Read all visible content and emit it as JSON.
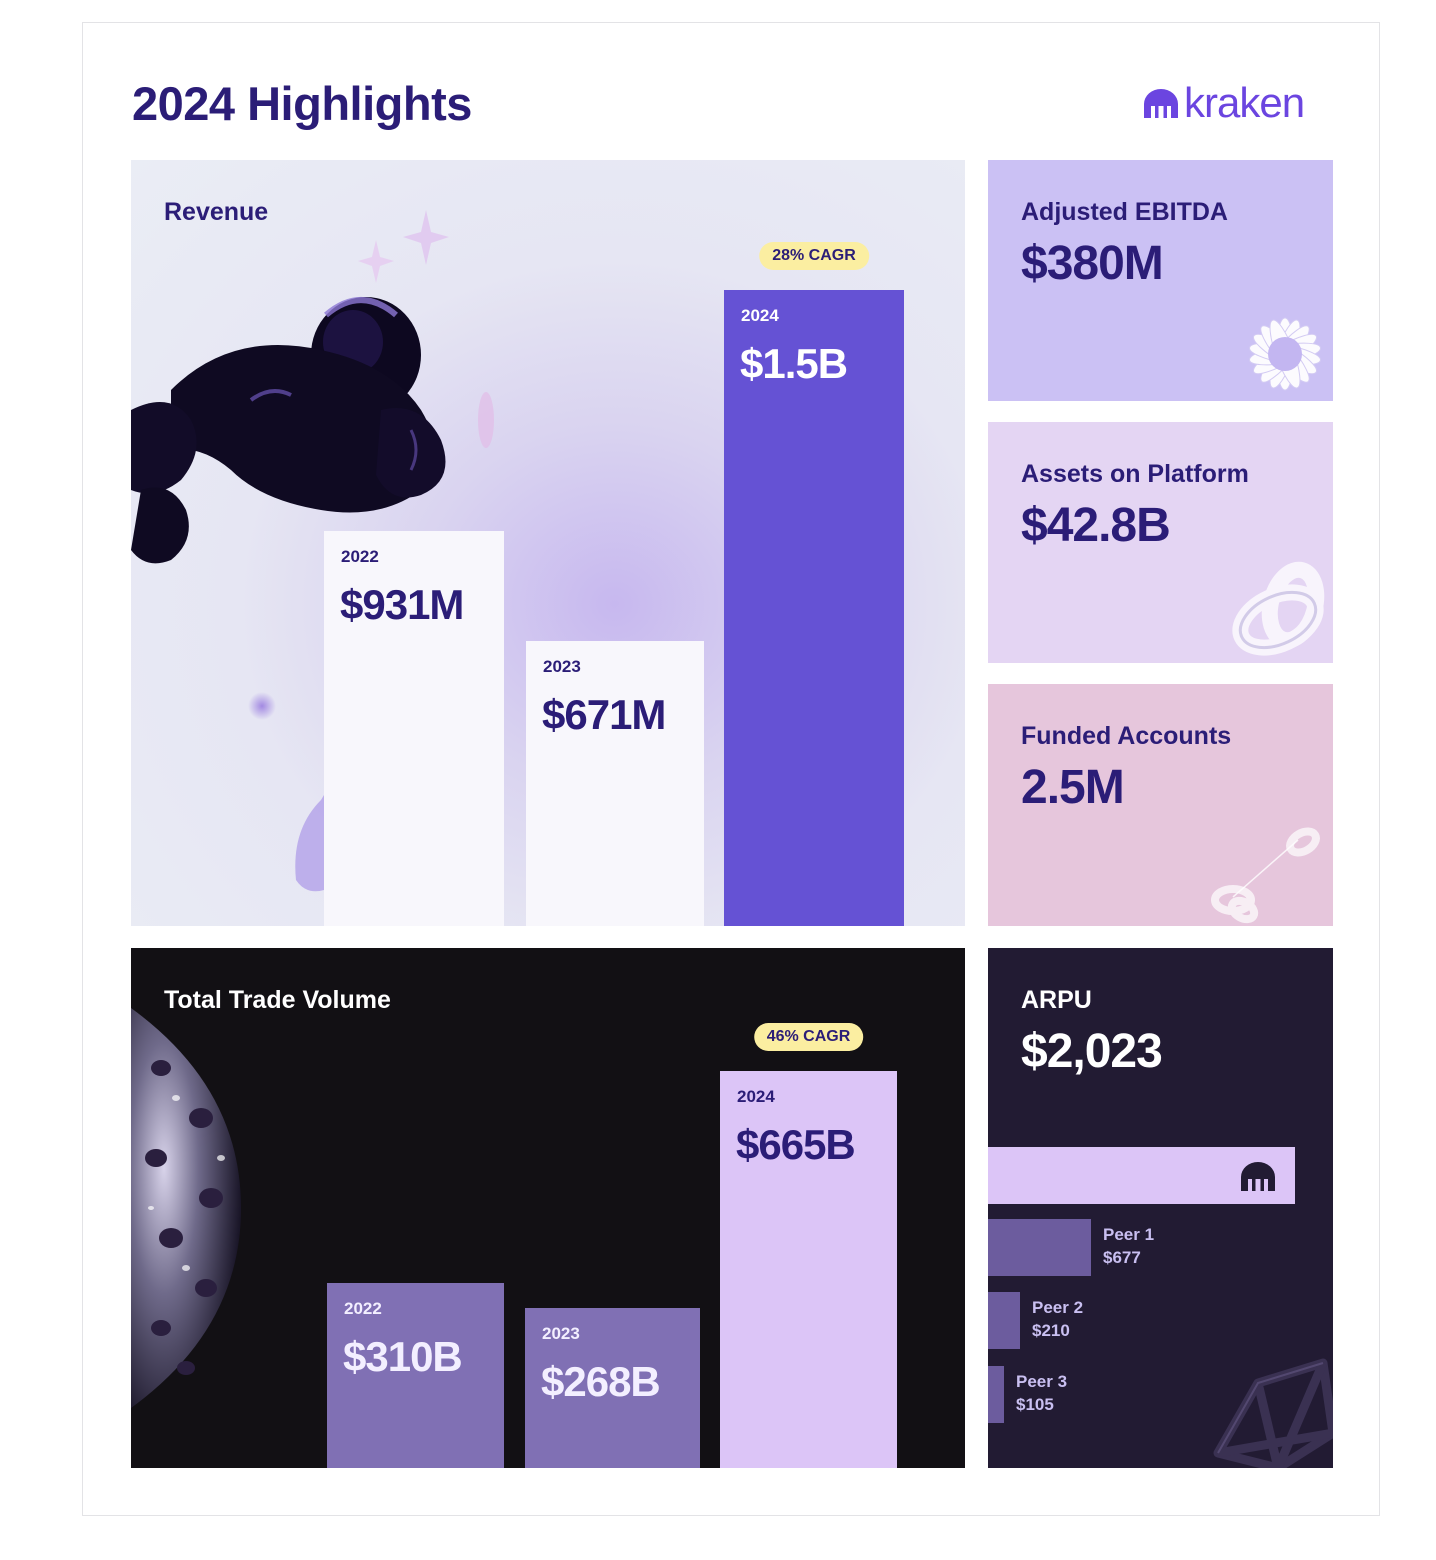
{
  "page": {
    "title": "2024 Highlights",
    "logo_text": "kraken"
  },
  "colors": {
    "brand": "#2b1d77",
    "accent": "#6b45e0",
    "revenue_highlight": "#6552d4",
    "revenue_base": "#f8f7fc",
    "volume_highlight": "#dcc5f7",
    "volume_base": "#8070b4",
    "cagr_badge": "#fbeea1"
  },
  "stats": {
    "ebitda": {
      "label": "Adjusted EBITDA",
      "value": "$380M"
    },
    "assets": {
      "label": "Assets on Platform",
      "value": "$42.8B"
    },
    "funded": {
      "label": "Funded Accounts",
      "value": "2.5M"
    }
  },
  "chart_data": [
    {
      "type": "bar",
      "title": "Revenue",
      "categories": [
        "2022",
        "2023",
        "2024"
      ],
      "values": [
        931,
        671,
        1500
      ],
      "value_labels": [
        "$931M",
        "$671M",
        "$1.5B"
      ],
      "unit": "USD millions",
      "annotation": "28% CAGR",
      "highlight_category": "2024",
      "grid": false
    },
    {
      "type": "bar",
      "title": "Total Trade Volume",
      "categories": [
        "2022",
        "2023",
        "2024"
      ],
      "values": [
        310,
        268,
        665
      ],
      "value_labels": [
        "$310B",
        "$268B",
        "$665B"
      ],
      "unit": "USD billions",
      "annotation": "46% CAGR",
      "highlight_category": "2024",
      "grid": false
    },
    {
      "type": "bar",
      "orientation": "horizontal",
      "title": "ARPU",
      "headline": "$2,023",
      "categories": [
        "Kraken",
        "Peer 1",
        "Peer 2",
        "Peer 3"
      ],
      "values": [
        2023,
        677,
        210,
        105
      ],
      "value_labels": [
        "$2,023",
        "$677",
        "$210",
        "$105"
      ],
      "icons": [
        "kraken-logo-icon",
        "",
        "",
        ""
      ],
      "grid": false
    }
  ]
}
